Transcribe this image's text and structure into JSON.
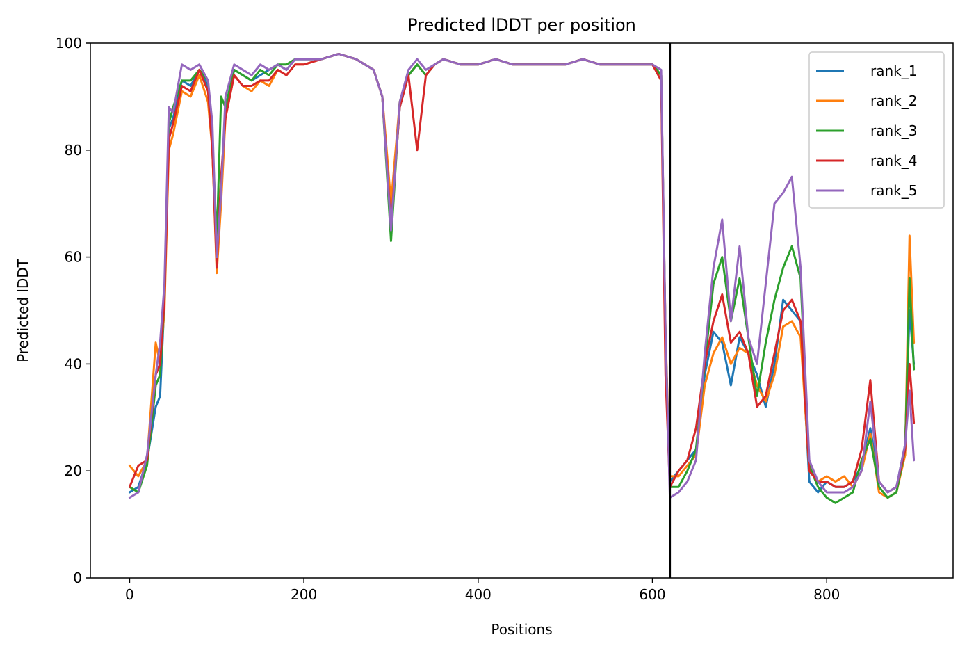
{
  "chart_data": {
    "type": "line",
    "title": "Predicted lDDT per position",
    "xlabel": "Positions",
    "ylabel": "Predicted lDDT",
    "xlim": [
      -45,
      945
    ],
    "ylim": [
      0,
      100
    ],
    "xticks": [
      0,
      200,
      400,
      600,
      800
    ],
    "yticks": [
      0,
      20,
      40,
      60,
      80,
      100
    ],
    "grid": false,
    "legend_position": "top-right",
    "vline_x": 620,
    "colors": {
      "rank_1": "#1f77b4",
      "rank_2": "#ff7f0e",
      "rank_3": "#2ca02c",
      "rank_4": "#d62728",
      "rank_5": "#9467bd",
      "vline": "#000000"
    },
    "series": [
      {
        "name": "rank_1",
        "x": [
          0,
          10,
          20,
          30,
          35,
          40,
          45,
          50,
          60,
          70,
          80,
          90,
          95,
          100,
          105,
          110,
          120,
          130,
          140,
          150,
          160,
          170,
          180,
          190,
          200,
          220,
          240,
          260,
          280,
          290,
          300,
          310,
          320,
          330,
          340,
          350,
          360,
          380,
          400,
          420,
          440,
          460,
          480,
          500,
          520,
          540,
          560,
          580,
          600,
          610,
          615,
          620,
          630,
          640,
          650,
          660,
          670,
          680,
          690,
          700,
          710,
          720,
          730,
          740,
          750,
          760,
          770,
          780,
          790,
          800,
          810,
          820,
          830,
          840,
          850,
          860,
          870,
          880,
          890,
          895,
          900
        ],
        "y": [
          16,
          17,
          22,
          32,
          34,
          52,
          84,
          86,
          93,
          92,
          95,
          92,
          80,
          60,
          72,
          88,
          95,
          94,
          93,
          94,
          95,
          96,
          95,
          97,
          97,
          97,
          98,
          97,
          95,
          90,
          66,
          88,
          94,
          96,
          94,
          96,
          97,
          96,
          96,
          97,
          96,
          96,
          96,
          96,
          97,
          96,
          96,
          96,
          96,
          94,
          45,
          18,
          20,
          22,
          24,
          38,
          46,
          44,
          36,
          45,
          42,
          38,
          32,
          40,
          52,
          50,
          48,
          18,
          16,
          18,
          17,
          17,
          18,
          21,
          28,
          18,
          16,
          17,
          25,
          50,
          40
        ]
      },
      {
        "name": "rank_2",
        "x": [
          0,
          10,
          20,
          30,
          35,
          40,
          45,
          50,
          60,
          70,
          80,
          90,
          95,
          100,
          105,
          110,
          120,
          130,
          140,
          150,
          160,
          170,
          180,
          190,
          200,
          220,
          240,
          260,
          280,
          290,
          300,
          310,
          320,
          330,
          340,
          350,
          360,
          380,
          400,
          420,
          440,
          460,
          480,
          500,
          520,
          540,
          560,
          580,
          600,
          610,
          615,
          620,
          630,
          640,
          650,
          660,
          670,
          680,
          690,
          700,
          710,
          720,
          730,
          740,
          750,
          760,
          770,
          780,
          790,
          800,
          810,
          820,
          830,
          840,
          850,
          860,
          870,
          880,
          890,
          895,
          900
        ],
        "y": [
          21,
          19,
          22,
          44,
          40,
          50,
          80,
          83,
          91,
          90,
          94,
          89,
          80,
          57,
          70,
          86,
          94,
          92,
          91,
          93,
          92,
          95,
          94,
          96,
          96,
          97,
          98,
          97,
          95,
          90,
          70,
          89,
          94,
          96,
          94,
          96,
          97,
          96,
          96,
          97,
          96,
          96,
          96,
          96,
          97,
          96,
          96,
          96,
          96,
          94,
          46,
          19,
          19,
          21,
          23,
          36,
          42,
          45,
          40,
          43,
          42,
          36,
          33,
          38,
          47,
          48,
          45,
          20,
          18,
          19,
          18,
          19,
          17,
          20,
          27,
          16,
          15,
          16,
          23,
          64,
          44
        ]
      },
      {
        "name": "rank_3",
        "x": [
          0,
          10,
          20,
          30,
          35,
          40,
          45,
          50,
          60,
          70,
          80,
          90,
          95,
          100,
          105,
          110,
          120,
          130,
          140,
          150,
          160,
          170,
          180,
          190,
          200,
          220,
          240,
          260,
          280,
          290,
          300,
          310,
          320,
          330,
          340,
          350,
          360,
          380,
          400,
          420,
          440,
          460,
          480,
          500,
          520,
          540,
          560,
          580,
          600,
          610,
          615,
          620,
          630,
          640,
          650,
          660,
          670,
          680,
          690,
          700,
          710,
          720,
          730,
          740,
          750,
          760,
          770,
          780,
          790,
          800,
          810,
          820,
          830,
          840,
          850,
          860,
          870,
          880,
          890,
          895,
          900
        ],
        "y": [
          17,
          16,
          21,
          36,
          38,
          52,
          85,
          88,
          93,
          93,
          95,
          93,
          82,
          63,
          90,
          88,
          95,
          94,
          93,
          95,
          94,
          96,
          96,
          97,
          97,
          97,
          98,
          97,
          95,
          90,
          63,
          89,
          94,
          96,
          94,
          96,
          97,
          96,
          96,
          97,
          96,
          96,
          96,
          96,
          97,
          96,
          96,
          96,
          96,
          94,
          45,
          17,
          17,
          20,
          24,
          40,
          55,
          60,
          48,
          56,
          45,
          34,
          44,
          52,
          58,
          62,
          56,
          21,
          17,
          15,
          14,
          15,
          16,
          22,
          26,
          17,
          15,
          16,
          24,
          56,
          39
        ]
      },
      {
        "name": "rank_4",
        "x": [
          0,
          10,
          20,
          30,
          35,
          40,
          45,
          50,
          60,
          70,
          80,
          90,
          95,
          100,
          105,
          110,
          120,
          130,
          140,
          150,
          160,
          170,
          180,
          190,
          200,
          220,
          240,
          260,
          280,
          290,
          300,
          310,
          320,
          330,
          340,
          350,
          360,
          380,
          400,
          420,
          440,
          460,
          480,
          500,
          520,
          540,
          560,
          580,
          600,
          610,
          615,
          620,
          630,
          640,
          650,
          660,
          670,
          680,
          690,
          700,
          710,
          720,
          730,
          740,
          750,
          760,
          770,
          780,
          790,
          800,
          810,
          820,
          830,
          840,
          850,
          860,
          870,
          880,
          890,
          895,
          900
        ],
        "y": [
          17,
          21,
          22,
          38,
          40,
          52,
          82,
          85,
          92,
          91,
          95,
          91,
          80,
          58,
          75,
          86,
          94,
          92,
          92,
          93,
          93,
          95,
          94,
          96,
          96,
          97,
          98,
          97,
          95,
          90,
          66,
          88,
          94,
          80,
          94,
          96,
          97,
          96,
          96,
          97,
          96,
          96,
          96,
          96,
          97,
          96,
          96,
          96,
          96,
          93,
          38,
          17,
          20,
          22,
          28,
          40,
          48,
          53,
          44,
          46,
          42,
          32,
          34,
          42,
          50,
          52,
          48,
          20,
          18,
          18,
          17,
          17,
          18,
          24,
          37,
          18,
          16,
          17,
          24,
          40,
          29
        ]
      },
      {
        "name": "rank_5",
        "x": [
          0,
          10,
          20,
          30,
          35,
          40,
          45,
          50,
          60,
          70,
          80,
          90,
          95,
          100,
          105,
          110,
          120,
          130,
          140,
          150,
          160,
          170,
          180,
          190,
          200,
          220,
          240,
          260,
          280,
          290,
          300,
          310,
          320,
          330,
          340,
          350,
          360,
          380,
          400,
          420,
          440,
          460,
          480,
          500,
          520,
          540,
          560,
          580,
          600,
          610,
          615,
          620,
          630,
          640,
          650,
          660,
          670,
          680,
          690,
          700,
          710,
          720,
          730,
          740,
          750,
          760,
          770,
          780,
          790,
          800,
          810,
          820,
          830,
          840,
          850,
          860,
          870,
          880,
          890,
          895,
          900
        ],
        "y": [
          15,
          16,
          23,
          38,
          44,
          55,
          88,
          87,
          96,
          95,
          96,
          93,
          85,
          60,
          72,
          90,
          96,
          95,
          94,
          96,
          95,
          96,
          95,
          97,
          97,
          97,
          98,
          97,
          95,
          90,
          65,
          89,
          95,
          97,
          95,
          96,
          97,
          96,
          96,
          97,
          96,
          96,
          96,
          96,
          97,
          96,
          96,
          96,
          96,
          95,
          46,
          15,
          16,
          18,
          22,
          42,
          58,
          67,
          48,
          62,
          45,
          40,
          55,
          70,
          72,
          75,
          58,
          22,
          18,
          16,
          16,
          16,
          17,
          20,
          33,
          18,
          16,
          17,
          25,
          35,
          22
        ]
      }
    ]
  }
}
